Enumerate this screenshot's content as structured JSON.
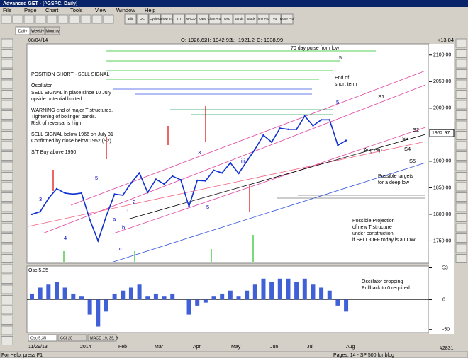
{
  "window": {
    "title": "Advanced GET - [^GSPC, Daily]"
  },
  "menu": [
    "File",
    "Page",
    "Chart",
    "Tools",
    "View",
    "Window",
    "Help"
  ],
  "toolbar": [
    "Ellt",
    "OCI",
    "Cycles",
    "Show Trg",
    "JTI",
    "MACD",
    "OBV",
    "Chan Anal",
    "Osc",
    "Bands",
    "Stock",
    "Time Proj",
    "Vol",
    "Move Prof"
  ],
  "tabs": [
    "Daily",
    "Weekly",
    "Monthly"
  ],
  "header": {
    "date": "08/04/14",
    "o_label": "O:",
    "open": 1926.62,
    "h_label": "H:",
    "high": 1942.92,
    "l_label": "L:",
    "low": 1921.2,
    "c_label": "C:",
    "close": 1938.99,
    "change": "+13.84"
  },
  "price_chart": {
    "ylim": [
      1708,
      2121
    ],
    "yticks": [
      {
        "value": 2100,
        "label": "2100.00"
      },
      {
        "value": 2050,
        "label": "2050.00"
      },
      {
        "value": 2000,
        "label": "2000.00"
      },
      {
        "value": 1900,
        "label": "1900.00"
      },
      {
        "value": 1850,
        "label": "1850.00"
      },
      {
        "value": 1800,
        "label": "1800.00"
      },
      {
        "value": 1750,
        "label": "1750.00"
      }
    ],
    "last": 1952.97,
    "closes": [
      1800,
      1805,
      1830,
      1848,
      1840,
      1838,
      1840,
      1790,
      1750,
      1797,
      1838,
      1836,
      1859,
      1878,
      1841,
      1866,
      1857,
      1872,
      1865,
      1815,
      1864,
      1863,
      1883,
      1878,
      1897,
      1877,
      1900,
      1923,
      1949,
      1936,
      1962,
      1960,
      1960,
      1985,
      1967,
      1978,
      1978,
      1930,
      1939
    ],
    "wave_labels": [
      "3",
      "5",
      "4",
      "a",
      "b",
      "c",
      "1",
      "2",
      "3",
      "5",
      "iii",
      "5",
      "S1",
      "S2",
      "S3",
      "S4",
      "S5"
    ],
    "notes": [
      "70 day pulse from low",
      "5",
      "End of",
      "short term",
      "POSITION SHORT - SELL SIGNAL",
      "Oscillator",
      "SELL SIGNAL in place since 10 July",
      "upside potential limited",
      "WARNING end of major T structures.",
      "Tightening of bollinger bands.",
      "Risk of reversal is high.",
      "SELL SIGNAL below 1966 on July 31",
      "Confirmed by close below 1952 (S2)",
      "S/T Buy above 1950",
      "Aug exp.",
      "Possible targets",
      "for a deep low",
      "Possible Projection",
      "of new T structure",
      "under construction",
      "if SELL-OFF today is a LOW"
    ]
  },
  "oscillator": {
    "name": "Osc 5,35",
    "ylim": [
      -55,
      56
    ],
    "yticks": [
      53,
      0,
      -50
    ],
    "values": [
      10,
      20,
      25,
      30,
      20,
      10,
      5,
      -25,
      -45,
      -20,
      10,
      15,
      20,
      25,
      5,
      10,
      5,
      10,
      0,
      -25,
      -10,
      -5,
      5,
      10,
      15,
      5,
      15,
      25,
      35,
      30,
      35,
      35,
      30,
      35,
      25,
      20,
      15,
      -10,
      -20
    ],
    "notes": [
      "Oscillator dropping",
      "Pullback to 0 required"
    ]
  },
  "indicator_tabs": [
    "Osc 5,35",
    "CCI 20",
    "MACD 19, 39, 9"
  ],
  "date_axis": [
    "11/29/13",
    "2014",
    "Feb",
    "Mar",
    "Apr",
    "May",
    "Jun",
    "Jul",
    "Aug"
  ],
  "status": {
    "help": "For Help, press F1",
    "page": "Pages: 14 - SP 500 for blog",
    "count": "#2831"
  }
}
